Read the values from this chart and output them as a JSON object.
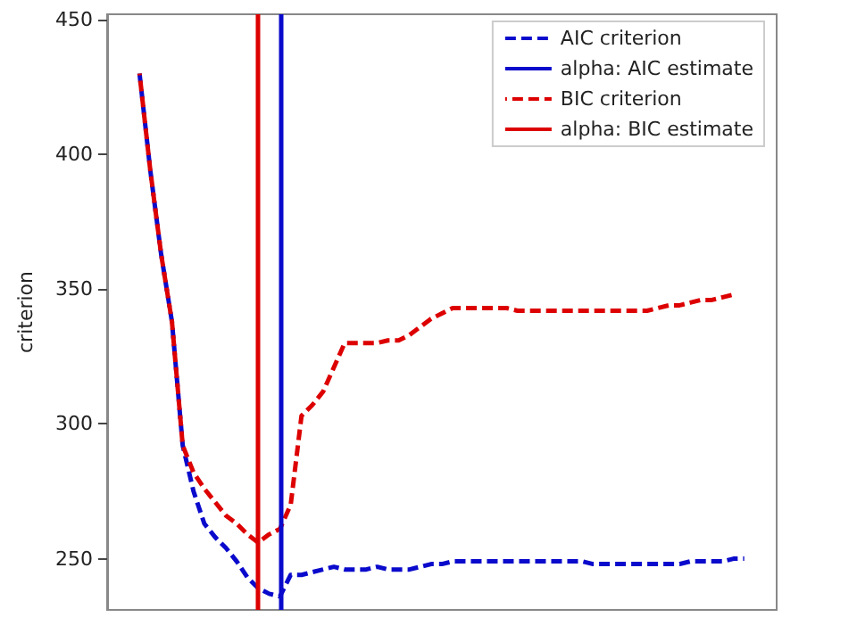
{
  "chart_data": {
    "type": "line",
    "ylabel": "criterion",
    "categories": [
      null,
      null,
      null,
      null,
      null,
      null,
      null,
      null,
      null,
      null,
      null,
      null,
      null,
      null,
      null,
      null,
      null,
      null,
      null,
      null,
      null,
      null,
      null,
      null,
      null,
      null,
      null,
      null,
      null,
      null,
      null,
      null,
      null,
      null,
      null,
      null,
      null,
      null,
      null,
      null,
      null,
      null,
      null,
      null,
      null,
      null,
      null,
      null,
      null,
      null,
      null,
      null,
      null,
      null,
      null,
      null,
      null,
      null,
      null,
      null,
      null,
      null,
      null
    ],
    "series": [
      {
        "name": "AIC criterion",
        "color": "#0a0acc",
        "line_style": "dashed",
        "values": [
          null,
          null,
          null,
          430,
          394,
          363,
          338,
          292,
          275,
          263,
          258,
          254,
          249,
          243,
          239,
          237,
          236,
          244,
          244,
          245,
          246,
          247,
          246,
          246,
          246,
          247,
          246,
          246,
          246,
          247,
          248,
          248,
          249,
          249,
          249,
          249,
          249,
          249,
          249,
          249,
          249,
          249,
          249,
          249,
          249,
          248,
          248,
          248,
          248,
          248,
          248,
          248,
          248,
          248,
          249,
          249,
          249,
          249,
          250,
          250,
          null,
          null,
          null
        ]
      },
      {
        "name": "BIC criterion",
        "color": "#dd0000",
        "line_style": "dashed",
        "values": [
          null,
          null,
          null,
          430,
          394,
          363,
          338,
          292,
          282,
          276,
          271,
          266,
          263,
          259,
          256,
          259,
          261,
          270,
          303,
          307,
          312,
          321,
          330,
          330,
          330,
          330,
          331,
          331,
          333,
          336,
          339,
          341,
          343,
          343,
          343,
          343,
          343,
          343,
          342,
          342,
          342,
          342,
          342,
          342,
          342,
          342,
          342,
          342,
          342,
          342,
          342,
          343,
          344,
          344,
          345,
          346,
          346,
          347,
          348,
          null,
          null,
          null,
          null
        ]
      }
    ],
    "ref_lines": [
      {
        "axis": "x",
        "label": "alpha: AIC estimate",
        "color": "#0a0acc",
        "line_style": "solid"
      },
      {
        "axis": "x",
        "label": "alpha: BIC estimate",
        "color": "#dd0000",
        "line_style": "solid"
      }
    ],
    "ylim": [
      231,
      452
    ],
    "yticks": [
      250,
      300,
      350,
      400,
      450
    ],
    "grid": false,
    "legend": "top right",
    "marker": "none"
  }
}
